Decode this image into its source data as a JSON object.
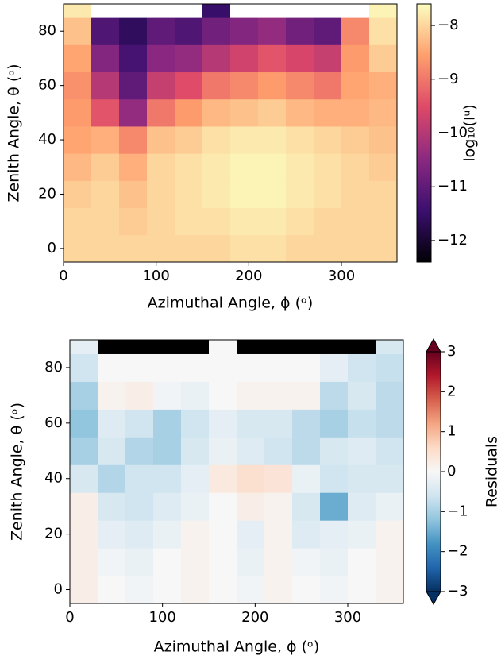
{
  "chart_data": [
    {
      "type": "heatmap",
      "xlabel": "Azimuthal Angle, ϕ (ᵒ)",
      "ylabel": "Zenith Angle, θ (ᵒ)",
      "xlim": [
        0,
        360
      ],
      "ylim": [
        -5,
        90
      ],
      "xticks": [
        0,
        100,
        200,
        300
      ],
      "yticks": [
        0,
        20,
        40,
        60,
        80
      ],
      "x": [
        15,
        45,
        75,
        105,
        135,
        165,
        195,
        225,
        255,
        285,
        315,
        345
      ],
      "y": [
        0,
        10,
        20,
        30,
        40,
        50,
        60,
        70,
        80,
        90
      ],
      "z": [
        [
          -8.0,
          -8.0,
          -8.0,
          -8.0,
          -8.0,
          -8.0,
          -7.9,
          -7.9,
          -8.0,
          -8.0,
          -8.0,
          -8.0
        ],
        [
          -8.0,
          -8.0,
          -8.1,
          -8.0,
          -7.9,
          -7.9,
          -7.8,
          -7.8,
          -7.9,
          -8.0,
          -8.0,
          -8.0
        ],
        [
          -8.1,
          -8.0,
          -8.2,
          -8.0,
          -7.9,
          -7.8,
          -7.7,
          -7.7,
          -7.8,
          -7.9,
          -8.0,
          -8.0
        ],
        [
          -8.3,
          -8.1,
          -8.4,
          -8.0,
          -7.9,
          -7.8,
          -7.7,
          -7.7,
          -7.8,
          -7.9,
          -8.0,
          -8.1
        ],
        [
          -8.5,
          -8.4,
          -8.8,
          -8.2,
          -8.1,
          -7.9,
          -7.8,
          -7.8,
          -7.9,
          -8.0,
          -8.1,
          -8.2
        ],
        [
          -8.6,
          -9.4,
          -10.4,
          -9.0,
          -8.6,
          -8.3,
          -8.2,
          -8.1,
          -8.3,
          -8.4,
          -8.4,
          -8.3
        ],
        [
          -8.7,
          -10.0,
          -11.0,
          -9.8,
          -9.5,
          -9.0,
          -8.8,
          -8.6,
          -8.8,
          -9.0,
          -8.5,
          -8.4
        ],
        [
          -8.5,
          -10.6,
          -11.3,
          -10.5,
          -10.4,
          -10.0,
          -9.7,
          -9.4,
          -9.6,
          -9.8,
          -8.6,
          -8.1
        ],
        [
          -8.2,
          -11.2,
          -11.6,
          -11.0,
          -11.2,
          -10.8,
          -10.6,
          -10.4,
          -10.8,
          -11.0,
          -8.8,
          -7.9
        ],
        [
          -7.8,
          null,
          null,
          null,
          null,
          -11.5,
          null,
          null,
          null,
          null,
          null,
          -7.7
        ]
      ],
      "null_color": "#ffffff",
      "colormap": [
        "#000004",
        "#3b0f70",
        "#8c2981",
        "#de4968",
        "#fe9f6d",
        "#fcfdbf"
      ],
      "colorbar": {
        "label": "log₁₀(Iᵘ)",
        "lim": [
          -12.4,
          -7.6
        ],
        "ticks": [
          {
            "value": -12,
            "label": "−12"
          },
          {
            "value": -11,
            "label": "−11"
          },
          {
            "value": -10,
            "label": "−10"
          },
          {
            "value": -9,
            "label": "−9"
          },
          {
            "value": -8,
            "label": "−8"
          }
        ],
        "extend": false
      }
    },
    {
      "type": "heatmap",
      "xlabel": "Azimuthal Angle, ϕ (ᵒ)",
      "ylabel": "Zenith Angle, θ (ᵒ)",
      "xlim": [
        0,
        360
      ],
      "ylim": [
        -5,
        90
      ],
      "xticks": [
        0,
        100,
        200,
        300
      ],
      "yticks": [
        0,
        20,
        40,
        60,
        80
      ],
      "x": [
        15,
        45,
        75,
        105,
        135,
        165,
        195,
        225,
        255,
        285,
        315,
        345
      ],
      "y": [
        0,
        10,
        20,
        30,
        40,
        50,
        60,
        70,
        80,
        90
      ],
      "z": [
        [
          0.2,
          0,
          -0.1,
          0,
          0.1,
          0,
          -0.1,
          0.1,
          0,
          -0.1,
          0,
          0.1
        ],
        [
          0.2,
          -0.1,
          -0.2,
          0,
          0.1,
          0,
          -0.2,
          0.1,
          -0.1,
          -0.2,
          0,
          0.1
        ],
        [
          0.2,
          -0.3,
          -0.4,
          -0.2,
          0.1,
          0,
          -0.3,
          0.1,
          -0.4,
          -0.3,
          -0.2,
          0.1
        ],
        [
          0.2,
          -0.5,
          -0.6,
          -0.4,
          -0.2,
          0,
          0.2,
          0.1,
          -0.5,
          -1.5,
          -0.4,
          -0.2
        ],
        [
          -0.5,
          -0.9,
          -0.6,
          -0.6,
          -0.3,
          0.3,
          0.5,
          0.4,
          -0.2,
          -0.6,
          -0.5,
          -0.5
        ],
        [
          -1.0,
          -0.5,
          -0.9,
          -1.0,
          -0.5,
          -0.2,
          -0.4,
          -0.6,
          -0.8,
          -0.5,
          -0.4,
          -0.6
        ],
        [
          -1.2,
          -0.4,
          -0.6,
          -1.0,
          -0.6,
          -0.3,
          -0.5,
          -0.5,
          -0.8,
          -1.0,
          -0.7,
          -0.8
        ],
        [
          -1.0,
          0.1,
          0.2,
          -0.1,
          -0.2,
          0,
          0.1,
          0.1,
          0.1,
          -0.8,
          -0.5,
          -0.8
        ],
        [
          -0.6,
          0,
          0,
          0,
          0,
          0,
          0,
          0,
          0,
          -0.3,
          -0.6,
          -0.7
        ],
        [
          -0.3,
          null,
          null,
          null,
          null,
          0,
          null,
          null,
          null,
          null,
          null,
          -0.5
        ]
      ],
      "null_color": "#000000",
      "colormap": [
        "#053061",
        "#2166ac",
        "#4393c3",
        "#92c5de",
        "#d1e5f0",
        "#f7f7f7",
        "#fddbc7",
        "#f4a582",
        "#d6604d",
        "#b2182b",
        "#67001f"
      ],
      "colorbar": {
        "label": "Residuals",
        "lim": [
          -3,
          3
        ],
        "ticks": [
          {
            "value": -3,
            "label": "−3"
          },
          {
            "value": -2,
            "label": "−2"
          },
          {
            "value": -1,
            "label": "−1"
          },
          0,
          1,
          2,
          3
        ],
        "extend": true
      }
    }
  ]
}
